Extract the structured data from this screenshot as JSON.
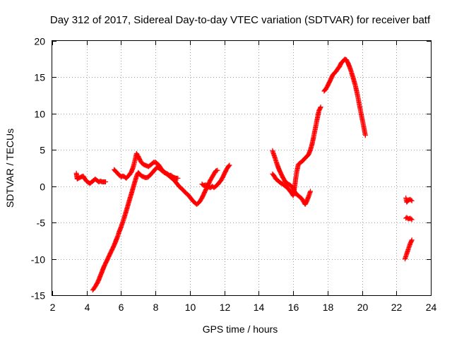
{
  "chart_data": {
    "type": "scatter",
    "title": "Day 312 of 2017, Sidereal Day-to-day VTEC variation (SDTVAR) for receiver batf",
    "xlabel": "GPS time / hours",
    "ylabel": "SDTVAR / TECUs",
    "xlim": [
      2,
      24
    ],
    "ylim": [
      -15,
      20
    ],
    "xticks": [
      2,
      4,
      6,
      8,
      10,
      12,
      14,
      16,
      18,
      20,
      22,
      24
    ],
    "yticks": [
      -15,
      -10,
      -5,
      0,
      5,
      10,
      15,
      20
    ],
    "x_tick_labels": [
      "2",
      "4",
      "6",
      "8",
      "10",
      "12",
      "14",
      "16",
      "18",
      "20",
      "22",
      "24"
    ],
    "y_tick_labels": [
      "-15",
      "-10",
      "-5",
      "0",
      "5",
      "10",
      "15",
      "20"
    ],
    "grid": true,
    "marker": "+",
    "color": "#ff0000",
    "series": [
      {
        "name": "upper-track-morning",
        "segments": [
          [
            [
              3.4,
              1.8
            ],
            [
              3.45,
              1.0
            ],
            [
              3.6,
              1.2
            ],
            [
              3.8,
              1.4
            ],
            [
              3.9,
              1.0
            ],
            [
              4.0,
              0.7
            ],
            [
              4.1,
              0.5
            ],
            [
              4.2,
              0.4
            ],
            [
              4.3,
              0.6
            ],
            [
              4.4,
              0.8
            ],
            [
              4.5,
              1.0
            ],
            [
              4.6,
              0.8
            ],
            [
              4.7,
              0.6
            ],
            [
              4.8,
              0.7
            ],
            [
              4.9,
              0.6
            ],
            [
              5.0,
              0.6
            ],
            [
              5.1,
              0.6
            ]
          ],
          [
            [
              5.6,
              2.3
            ],
            [
              5.7,
              2.0
            ],
            [
              5.8,
              1.8
            ],
            [
              5.9,
              1.5
            ],
            [
              6.0,
              1.3
            ],
            [
              6.1,
              1.4
            ],
            [
              6.2,
              1.3
            ],
            [
              6.3,
              1.1
            ],
            [
              6.4,
              1.4
            ],
            [
              6.5,
              1.6
            ],
            [
              6.6,
              2.0
            ],
            [
              6.7,
              2.6
            ],
            [
              6.8,
              3.5
            ],
            [
              6.9,
              4.5
            ],
            [
              7.0,
              4.1
            ],
            [
              7.1,
              3.6
            ],
            [
              7.2,
              3.2
            ],
            [
              7.3,
              3.0
            ],
            [
              7.4,
              2.9
            ],
            [
              7.5,
              2.8
            ],
            [
              7.6,
              2.7
            ],
            [
              7.7,
              2.9
            ],
            [
              7.8,
              3.1
            ],
            [
              7.9,
              3.3
            ],
            [
              8.0,
              3.3
            ],
            [
              8.1,
              3.1
            ],
            [
              8.2,
              2.9
            ],
            [
              8.3,
              2.5
            ],
            [
              8.4,
              2.2
            ],
            [
              8.5,
              2.0
            ],
            [
              8.6,
              1.8
            ],
            [
              8.7,
              1.6
            ],
            [
              8.8,
              1.4
            ],
            [
              8.9,
              1.2
            ],
            [
              9.0,
              1.0
            ],
            [
              9.1,
              0.8
            ],
            [
              9.2,
              0.5
            ],
            [
              9.3,
              0.2
            ],
            [
              9.4,
              -0.1
            ],
            [
              9.5,
              -0.3
            ],
            [
              9.6,
              -0.5
            ],
            [
              9.7,
              -0.8
            ],
            [
              9.8,
              -1.0
            ],
            [
              9.9,
              -1.2
            ],
            [
              10.0,
              -1.5
            ],
            [
              10.1,
              -1.8
            ],
            [
              10.2,
              -2.1
            ],
            [
              10.3,
              -2.3
            ],
            [
              10.4,
              -2.5
            ],
            [
              10.5,
              -2.3
            ],
            [
              10.6,
              -2.0
            ],
            [
              10.7,
              -1.6
            ],
            [
              10.8,
              -1.1
            ],
            [
              10.9,
              -0.6
            ],
            [
              11.0,
              -0.1
            ],
            [
              11.1,
              0.4
            ],
            [
              11.2,
              0.9
            ],
            [
              11.3,
              1.3
            ],
            [
              11.4,
              1.7
            ],
            [
              11.5,
              2.1
            ],
            [
              11.6,
              2.2
            ]
          ],
          [
            [
              10.7,
              0.3
            ],
            [
              10.8,
              0.1
            ],
            [
              10.9,
              0.2
            ],
            [
              11.0,
              0.1
            ],
            [
              11.1,
              -0.1
            ],
            [
              11.2,
              -0.2
            ],
            [
              11.3,
              0.0
            ],
            [
              11.4,
              -0.2
            ],
            [
              11.5,
              0.0
            ],
            [
              11.6,
              0.2
            ],
            [
              11.7,
              0.5
            ],
            [
              11.8,
              0.8
            ],
            [
              11.9,
              1.2
            ],
            [
              12.0,
              1.7
            ],
            [
              12.1,
              2.2
            ],
            [
              12.2,
              2.6
            ],
            [
              12.3,
              2.9
            ]
          ]
        ]
      },
      {
        "name": "rising-track-morning",
        "segments": [
          [
            [
              4.35,
              -14.3
            ],
            [
              4.5,
              -13.8
            ],
            [
              4.6,
              -13.4
            ],
            [
              4.7,
              -12.9
            ],
            [
              4.8,
              -12.3
            ],
            [
              4.9,
              -11.7
            ],
            [
              5.0,
              -11.1
            ],
            [
              5.1,
              -10.6
            ],
            [
              5.2,
              -10.1
            ],
            [
              5.3,
              -9.6
            ],
            [
              5.4,
              -9.1
            ],
            [
              5.5,
              -8.6
            ],
            [
              5.6,
              -8.1
            ],
            [
              5.7,
              -7.5
            ],
            [
              5.8,
              -6.9
            ],
            [
              5.9,
              -6.2
            ],
            [
              6.0,
              -5.6
            ],
            [
              6.1,
              -4.9
            ],
            [
              6.2,
              -4.2
            ],
            [
              6.3,
              -3.4
            ],
            [
              6.4,
              -2.6
            ],
            [
              6.5,
              -1.8
            ],
            [
              6.6,
              -1.0
            ],
            [
              6.7,
              -0.2
            ],
            [
              6.8,
              0.6
            ],
            [
              6.9,
              1.4
            ],
            [
              7.0,
              1.9
            ],
            [
              7.1,
              1.6
            ],
            [
              7.2,
              1.4
            ],
            [
              7.3,
              1.3
            ],
            [
              7.4,
              1.2
            ],
            [
              7.5,
              1.2
            ],
            [
              7.6,
              1.3
            ],
            [
              7.7,
              1.6
            ],
            [
              7.8,
              1.8
            ],
            [
              7.9,
              2.1
            ],
            [
              8.0,
              2.4
            ],
            [
              8.1,
              2.6
            ],
            [
              8.2,
              2.5
            ],
            [
              8.3,
              2.3
            ],
            [
              8.4,
              2.1
            ],
            [
              8.5,
              1.9
            ],
            [
              8.6,
              1.8
            ],
            [
              8.7,
              1.7
            ],
            [
              8.8,
              1.5
            ],
            [
              8.9,
              1.5
            ],
            [
              9.0,
              1.3
            ],
            [
              9.1,
              1.2
            ],
            [
              9.2,
              1.1
            ],
            [
              9.3,
              1.1
            ]
          ]
        ]
      },
      {
        "name": "afternoon-track",
        "segments": [
          [
            [
              14.8,
              4.9
            ],
            [
              14.9,
              4.2
            ],
            [
              15.0,
              3.5
            ],
            [
              15.1,
              2.8
            ],
            [
              15.2,
              2.2
            ],
            [
              15.3,
              1.7
            ],
            [
              15.4,
              1.2
            ],
            [
              15.5,
              0.8
            ],
            [
              15.6,
              0.5
            ],
            [
              15.7,
              0.3
            ],
            [
              15.8,
              0.2
            ],
            [
              15.9,
              0.0
            ],
            [
              16.0,
              -0.3
            ],
            [
              16.1,
              -0.8
            ],
            [
              16.2,
              -1.1
            ],
            [
              16.3,
              -1.3
            ],
            [
              16.4,
              -1.5
            ],
            [
              16.5,
              -1.7
            ],
            [
              16.6,
              -2.1
            ],
            [
              16.7,
              -2.5
            ],
            [
              16.8,
              -2.0
            ],
            [
              16.9,
              -1.4
            ],
            [
              17.0,
              -0.7
            ]
          ],
          [
            [
              14.8,
              1.7
            ],
            [
              14.9,
              1.4
            ],
            [
              15.0,
              1.0
            ],
            [
              15.1,
              0.8
            ],
            [
              15.2,
              0.6
            ],
            [
              15.3,
              0.4
            ],
            [
              15.4,
              0.3
            ],
            [
              15.5,
              0.1
            ],
            [
              15.6,
              -0.1
            ],
            [
              15.7,
              -0.3
            ],
            [
              15.8,
              -0.6
            ],
            [
              15.9,
              -0.9
            ],
            [
              16.0,
              -1.3
            ],
            [
              16.1,
              0.1
            ],
            [
              16.2,
              1.9
            ],
            [
              16.3,
              3.0
            ],
            [
              16.4,
              3.2
            ],
            [
              16.5,
              3.4
            ],
            [
              16.6,
              3.6
            ],
            [
              16.7,
              3.9
            ],
            [
              16.8,
              4.1
            ],
            [
              16.9,
              4.4
            ],
            [
              17.0,
              5.0
            ],
            [
              17.1,
              5.8
            ],
            [
              17.2,
              6.9
            ],
            [
              17.3,
              8.1
            ],
            [
              17.4,
              9.3
            ],
            [
              17.5,
              10.4
            ],
            [
              17.6,
              10.9
            ]
          ],
          [
            [
              17.8,
              13.1
            ],
            [
              17.9,
              13.4
            ],
            [
              18.0,
              13.8
            ],
            [
              18.1,
              14.3
            ],
            [
              18.2,
              14.8
            ],
            [
              18.3,
              15.3
            ],
            [
              18.4,
              15.6
            ],
            [
              18.5,
              15.8
            ],
            [
              18.6,
              16.2
            ],
            [
              18.7,
              16.5
            ],
            [
              18.8,
              17.0
            ],
            [
              18.9,
              17.2
            ],
            [
              19.0,
              17.5
            ],
            [
              19.1,
              17.4
            ],
            [
              19.2,
              16.9
            ],
            [
              19.3,
              16.3
            ],
            [
              19.4,
              15.6
            ],
            [
              19.5,
              14.8
            ],
            [
              19.6,
              14.0
            ],
            [
              19.7,
              13.0
            ],
            [
              19.8,
              11.8
            ],
            [
              19.9,
              10.6
            ],
            [
              20.0,
              9.4
            ],
            [
              20.1,
              8.2
            ],
            [
              20.2,
              7.0
            ]
          ]
        ]
      },
      {
        "name": "late-track",
        "segments": [
          [
            [
              22.55,
              -1.6
            ],
            [
              22.6,
              -2.2
            ],
            [
              22.7,
              -1.9
            ],
            [
              22.8,
              -1.8
            ],
            [
              22.9,
              -2.0
            ]
          ],
          [
            [
              22.55,
              -4.4
            ],
            [
              22.6,
              -4.3
            ],
            [
              22.7,
              -4.5
            ],
            [
              22.8,
              -4.4
            ],
            [
              22.9,
              -4.6
            ]
          ],
          [
            [
              22.5,
              -10.0
            ],
            [
              22.6,
              -9.3
            ],
            [
              22.7,
              -8.6
            ],
            [
              22.8,
              -7.9
            ],
            [
              22.9,
              -7.4
            ]
          ]
        ]
      }
    ]
  }
}
